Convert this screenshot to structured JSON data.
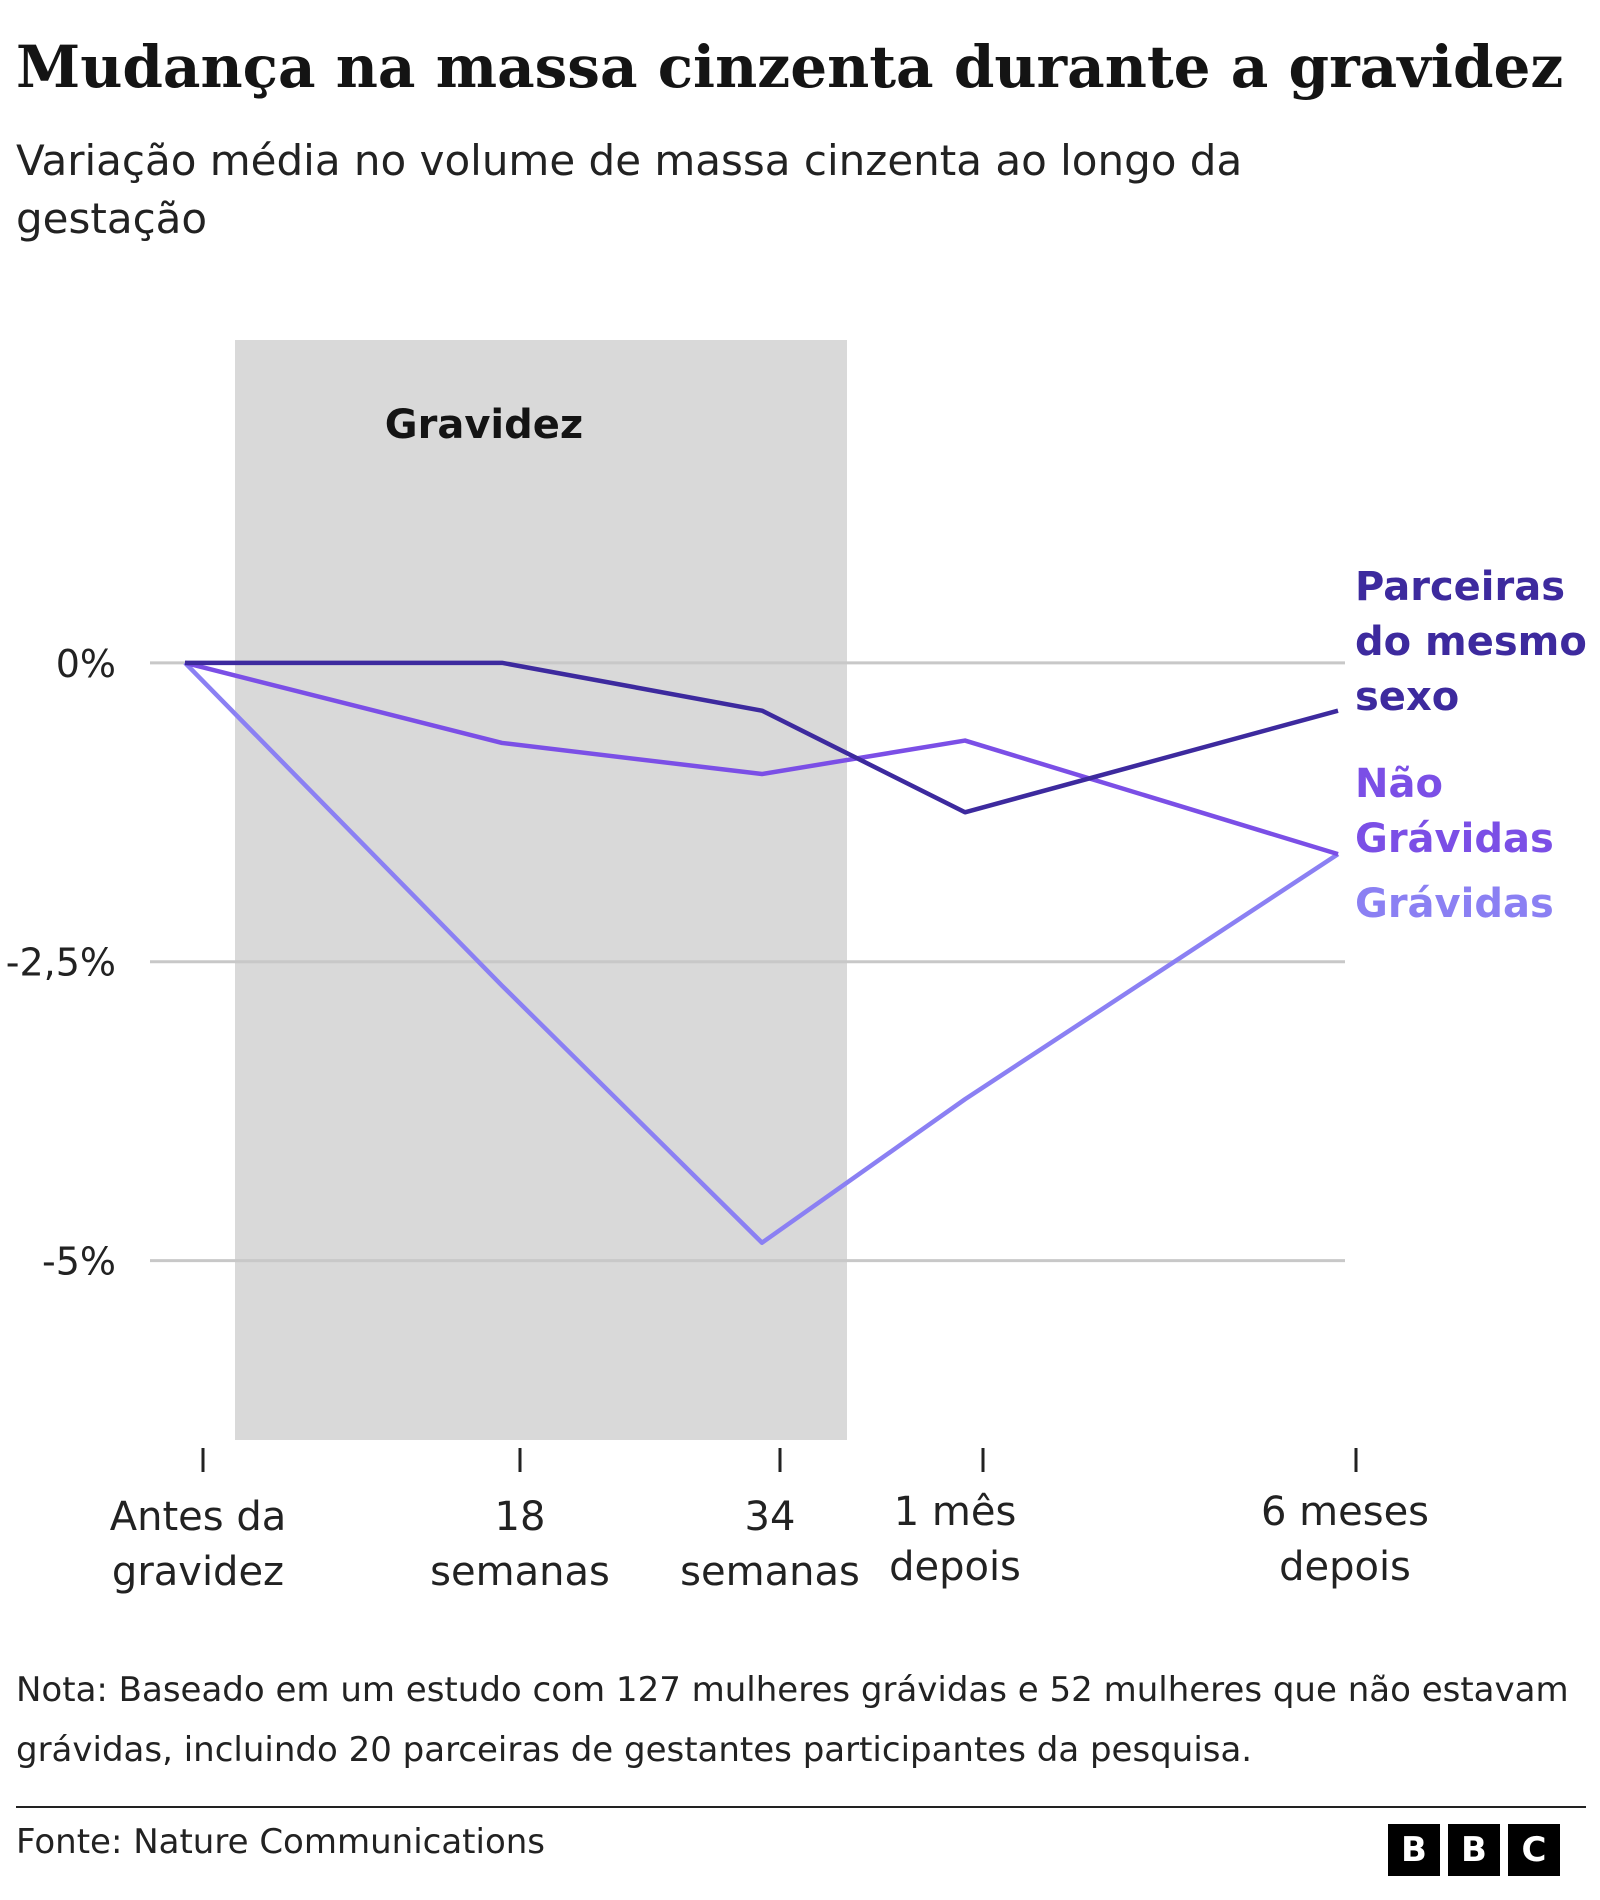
{
  "title": "Mudança na massa cinzenta durante a gravidez",
  "subtitle": "Variação média no volume de massa cinzenta ao longo da gestação",
  "note": "Nota: Baseado em um estudo com 127 mulheres grávidas e 52 mulheres que não estavam grávidas, incluindo 20 parceiras de gestantes participantes da pesquisa.",
  "source": "Fonte: Nature Communications",
  "logo_letters": [
    "B",
    "B",
    "C"
  ],
  "chart_data": {
    "type": "line",
    "x": [
      [
        "Antes da",
        "gravidez"
      ],
      [
        "18",
        "semanas"
      ],
      [
        "34",
        "semanas"
      ],
      [
        "1 mês",
        "depois"
      ],
      [
        "6 meses",
        "depois"
      ]
    ],
    "y_ticks": [
      {
        "value": 0,
        "label": "0%"
      },
      {
        "value": -2.5,
        "label": "-2,5%"
      },
      {
        "value": -5,
        "label": "-5%"
      }
    ],
    "ylim": [
      -6.5,
      2.7
    ],
    "grid": true,
    "shaded_region": {
      "label": "Gravidez",
      "color": "#d9d9d9"
    },
    "series": [
      {
        "name": [
          "Parceiras",
          "do mesmo",
          "sexo"
        ],
        "color": "#3d2a9e",
        "values": [
          0,
          0,
          -0.4,
          -1.25,
          -0.4
        ]
      },
      {
        "name": [
          "Não",
          "Grávidas"
        ],
        "color": "#7b4fe6",
        "values": [
          0,
          -0.67,
          -0.93,
          -0.65,
          -1.6
        ]
      },
      {
        "name": [
          "Grávidas"
        ],
        "color": "#8b80f3",
        "values": [
          0,
          -2.7,
          -4.85,
          -3.65,
          -1.6
        ]
      }
    ]
  }
}
